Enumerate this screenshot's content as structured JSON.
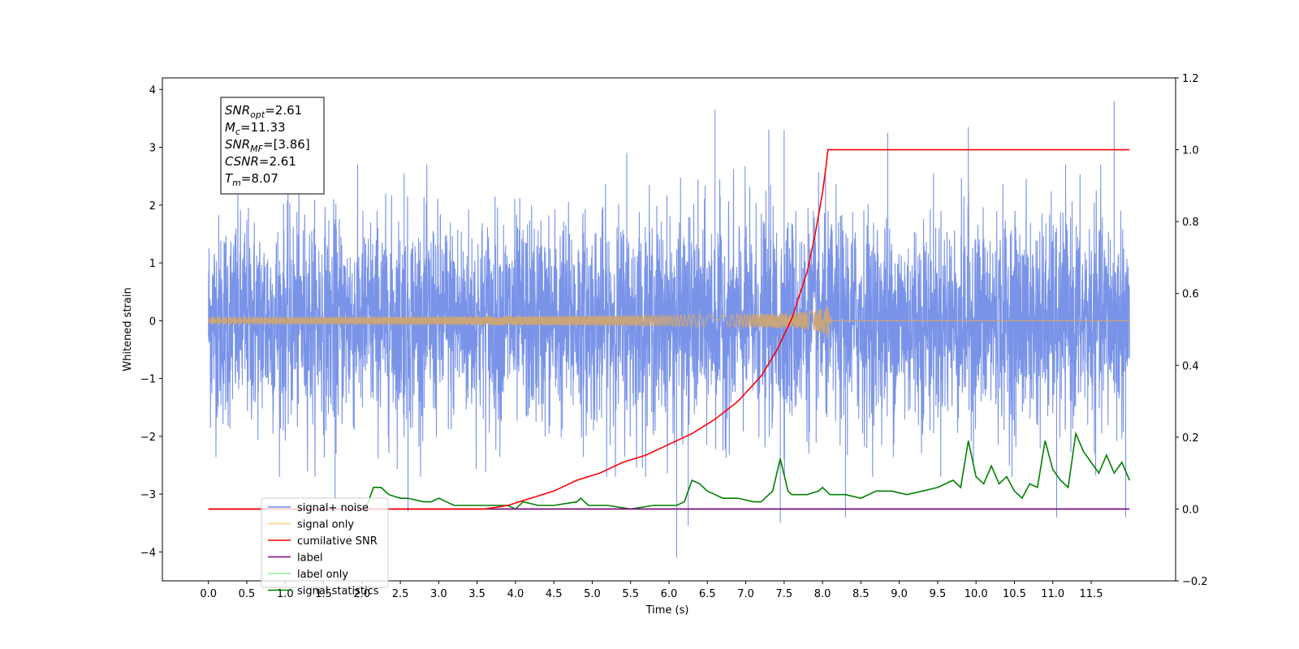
{
  "chart_data": {
    "type": "line",
    "title": "",
    "xlabel": "Time (s)",
    "ylabel_left": "Whitened strain",
    "ylabel_right": "",
    "xlim": [
      -0.6,
      12.6
    ],
    "ylim_left": [
      -4.5,
      4.2
    ],
    "ylim_right": [
      -0.2,
      1.2
    ],
    "x_ticks": [
      "0.0",
      "0.5",
      "1.0",
      "1.5",
      "2.0",
      "2.5",
      "3.0",
      "3.5",
      "4.0",
      "4.5",
      "5.0",
      "5.5",
      "6.0",
      "6.5",
      "7.0",
      "7.5",
      "8.0",
      "8.5",
      "9.0",
      "9.5",
      "10.0",
      "10.5",
      "11.0",
      "11.5"
    ],
    "y_ticks_left": [
      "4",
      "3",
      "2",
      "1",
      "0",
      "−1",
      "−2",
      "−3",
      "−4"
    ],
    "y_ticks_right": [
      "1.2",
      "1.0",
      "0.8",
      "0.6",
      "0.4",
      "0.2",
      "0.0",
      "−0.2"
    ],
    "grid": false,
    "legend_position": "lower-left",
    "annotation": {
      "lines": [
        {
          "sym": "SNR",
          "sub": "opt",
          "value": "=2.61"
        },
        {
          "sym": "M",
          "sub": "c",
          "value": "=11.33"
        },
        {
          "sym": "SNR",
          "sub": "MF",
          "value": "=[3.86]"
        },
        {
          "sym": "CSNR",
          "sub": "",
          "value": "=2.61"
        },
        {
          "sym": "T",
          "sub": "m",
          "value": "=8.07"
        }
      ]
    },
    "series": [
      {
        "name": "signal+ noise",
        "axis": "left",
        "color": "#6a87e6",
        "description": "whitened noise, amplitude about ±2.5, spikes up to 3.8",
        "t_range": [
          0.0,
          12.0
        ],
        "spikes": [
          [
            1.65,
            -3.1
          ],
          [
            2.6,
            -3.3
          ],
          [
            2.55,
            2.55
          ],
          [
            5.45,
            2.9
          ],
          [
            6.1,
            -4.1
          ],
          [
            6.25,
            -3.55
          ],
          [
            6.6,
            3.65
          ],
          [
            7.3,
            3.3
          ],
          [
            7.45,
            -3.5
          ],
          [
            7.5,
            3.3
          ],
          [
            8.3,
            -3.4
          ],
          [
            8.85,
            3.25
          ],
          [
            9.9,
            3.35
          ],
          [
            11.05,
            -3.4
          ],
          [
            11.8,
            3.8
          ],
          [
            11.95,
            -3.4
          ]
        ]
      },
      {
        "name": "signal only",
        "axis": "left",
        "color": "#ffa500",
        "description": "chirp, merger at T_m=8.07",
        "t_merge": 8.07,
        "peak_amplitude": 0.35
      },
      {
        "name": "cumilative SNR",
        "axis": "right",
        "color": "#ff0000",
        "x": [
          0.0,
          3.6,
          3.9,
          4.2,
          4.5,
          4.8,
          5.1,
          5.4,
          5.7,
          6.0,
          6.3,
          6.6,
          6.9,
          7.2,
          7.4,
          7.6,
          7.8,
          7.9,
          8.0,
          8.05,
          8.07,
          12.0
        ],
        "y": [
          0.0,
          0.0,
          0.01,
          0.03,
          0.05,
          0.08,
          0.1,
          0.13,
          0.15,
          0.18,
          0.21,
          0.25,
          0.3,
          0.37,
          0.44,
          0.53,
          0.66,
          0.76,
          0.88,
          0.96,
          1.0,
          1.0
        ]
      },
      {
        "name": "label",
        "axis": "right",
        "color": "#800080",
        "x": [
          0.0,
          12.0
        ],
        "y": [
          0.0,
          0.0
        ]
      },
      {
        "name": "label only",
        "axis": "right",
        "color": "#90ee90",
        "x": [
          0.0,
          12.0
        ],
        "y": [
          0.0,
          0.0
        ]
      },
      {
        "name": "signal statistics",
        "axis": "right",
        "color": "#008000",
        "x": [
          0.0,
          2.05,
          2.15,
          2.25,
          2.35,
          2.5,
          2.6,
          2.8,
          2.9,
          3.0,
          3.2,
          3.5,
          3.8,
          3.9,
          4.0,
          4.1,
          4.3,
          4.5,
          4.8,
          4.85,
          4.95,
          5.2,
          5.5,
          5.8,
          6.1,
          6.2,
          6.3,
          6.4,
          6.5,
          6.6,
          6.7,
          6.9,
          7.1,
          7.2,
          7.35,
          7.45,
          7.55,
          7.6,
          7.8,
          7.95,
          8.0,
          8.1,
          8.3,
          8.5,
          8.7,
          8.9,
          9.1,
          9.3,
          9.5,
          9.7,
          9.8,
          9.9,
          10.0,
          10.1,
          10.2,
          10.3,
          10.4,
          10.5,
          10.6,
          10.7,
          10.8,
          10.9,
          11.0,
          11.1,
          11.2,
          11.3,
          11.4,
          11.5,
          11.6,
          11.7,
          11.8,
          11.9,
          12.0
        ],
        "y": [
          0.0,
          0.0,
          0.06,
          0.06,
          0.04,
          0.03,
          0.03,
          0.02,
          0.02,
          0.03,
          0.01,
          0.01,
          0.01,
          0.01,
          0.0,
          0.02,
          0.01,
          0.01,
          0.02,
          0.03,
          0.01,
          0.01,
          0.0,
          0.01,
          0.01,
          0.02,
          0.08,
          0.07,
          0.05,
          0.04,
          0.03,
          0.03,
          0.02,
          0.02,
          0.05,
          0.14,
          0.05,
          0.04,
          0.04,
          0.05,
          0.06,
          0.04,
          0.04,
          0.03,
          0.05,
          0.05,
          0.04,
          0.05,
          0.06,
          0.08,
          0.06,
          0.19,
          0.09,
          0.07,
          0.12,
          0.07,
          0.09,
          0.05,
          0.03,
          0.07,
          0.06,
          0.19,
          0.11,
          0.08,
          0.06,
          0.21,
          0.16,
          0.13,
          0.1,
          0.15,
          0.1,
          0.13,
          0.08
        ]
      }
    ]
  }
}
